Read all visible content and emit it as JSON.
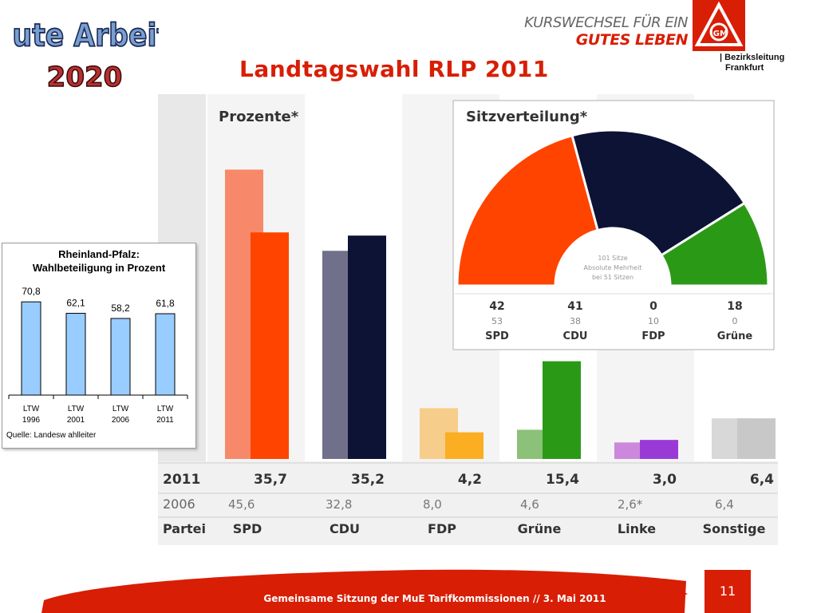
{
  "header": {
    "logo_line1": "Gute Arbeit",
    "logo_line2": "2020",
    "title": "Landtagswahl RLP 2011",
    "slogan_line1": "KURSWECHSEL FÜR EIN",
    "slogan_line2": "GUTES LEBEN",
    "logo_letters": "IGM",
    "district_line1": "| Bezirksleitung",
    "district_line2": "Frankfurt",
    "accent_color": "#d81e05"
  },
  "chart_data": [
    {
      "type": "bar",
      "title": "Prozente*",
      "categories": [
        "SPD",
        "CDU",
        "FDP",
        "Grüne",
        "Linke",
        "Sonstige"
      ],
      "series": [
        {
          "name": "2006",
          "values": [
            45.6,
            32.8,
            8.0,
            4.6,
            2.6,
            6.4
          ],
          "colors": [
            "#f7896a",
            "#70708a",
            "#f6cd8a",
            "#8bc178",
            "#cc88dd",
            "#d8d8d8"
          ]
        },
        {
          "name": "2011",
          "values": [
            35.7,
            35.2,
            4.2,
            15.4,
            3.0,
            6.4
          ],
          "colors": [
            "#ff4400",
            "#0c1335",
            "#fbae22",
            "#2a9a16",
            "#9a3ad6",
            "#c8c8c8"
          ]
        }
      ],
      "row_labels": {
        "year_2011": "2011",
        "year_2006": "2006",
        "party": "Partei"
      },
      "values_2011_text": [
        "35,7",
        "35,2",
        "4,2",
        "15,4",
        "3,0",
        "6,4"
      ],
      "values_2006_text": [
        "45,6",
        "32,8",
        "8,0",
        "4,6",
        "2,6*",
        "6,4"
      ]
    },
    {
      "type": "pie",
      "title": "Sitzverteilung*",
      "labels": [
        "SPD",
        "CDU",
        "FDP",
        "Grüne"
      ],
      "seats_2011": [
        42,
        41,
        0,
        18
      ],
      "seats_2006": [
        53,
        38,
        10,
        0
      ],
      "colors": [
        "#ff4400",
        "#0c1335",
        "#f6cd8a",
        "#2a9a16"
      ],
      "center_text": [
        "101 Sitze",
        "Absolute Mehrheit",
        "bei 51 Sitzen"
      ]
    },
    {
      "type": "bar",
      "title": "Rheinland-Pfalz:",
      "subtitle": "Wahlbeteiligung in Prozent",
      "categories": [
        [
          "LTW",
          "1996"
        ],
        [
          "LTW",
          "2001"
        ],
        [
          "LTW",
          "2006"
        ],
        [
          "LTW",
          "2011"
        ]
      ],
      "values": [
        70.8,
        62.1,
        58.2,
        61.8
      ],
      "value_labels": [
        "70,8",
        "62,1",
        "58,2",
        "61,8"
      ],
      "bar_color": "#99ccff",
      "source": "Quelle: Landesw ahlleiter"
    }
  ],
  "footer": {
    "text": "Gemeinsame Sitzung der MuE Tarifkommissionen // 3. Mai 2011",
    "page_number": "11"
  }
}
